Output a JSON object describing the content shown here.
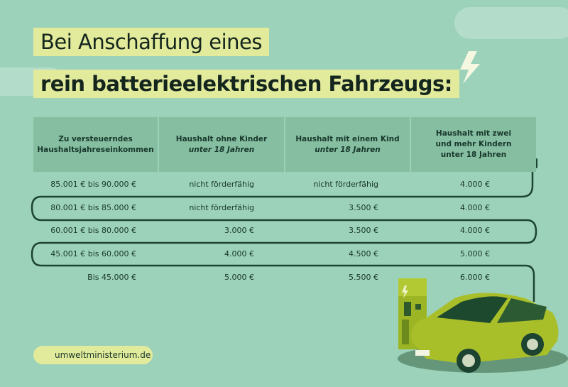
{
  "title": {
    "line1": "Bei Anschaffung eines",
    "line2": "rein batterieelektrischen Fahrzeugs:"
  },
  "table": {
    "headers": [
      {
        "line1": "Zu versteuerndes",
        "line2": "Haushaltsjahreseinkommen",
        "line3": ""
      },
      {
        "line1": "Haushalt ohne Kinder",
        "line2": "unter 18 Jahren",
        "line3": ""
      },
      {
        "line1": "Haushalt mit einem Kind",
        "line2": "unter 18 Jahren",
        "line3": ""
      },
      {
        "line1": "Haushalt mit zwei",
        "line2": "und mehr Kindern",
        "line3": "unter 18 Jahren"
      }
    ],
    "rows": [
      [
        "85.001 € bis 90.000 €",
        "nicht förderfähig",
        "nicht förderfähig",
        "4.000 €"
      ],
      [
        "80.001 € bis 85.000 €",
        "nicht förderfähig",
        "3.500 €",
        "4.000 €"
      ],
      [
        "60.001 € bis 80.000 €",
        "3.000 €",
        "3.500 €",
        "4.000 €"
      ],
      [
        "45.001 € bis 60.000 €",
        "4.000 €",
        "4.500 €",
        "5.000 €"
      ],
      [
        "Bis  45.000 €",
        "5.000 €",
        "5.500 €",
        "6.000 €"
      ]
    ]
  },
  "footer": {
    "website": "umweltministerium.de",
    "icon": "leaf-icon"
  },
  "colors": {
    "background": "#9dd2ba",
    "header": "#86bea2",
    "highlight": "#e2ea9c",
    "cable": "#1c4431",
    "car": "#a9bf2a"
  }
}
